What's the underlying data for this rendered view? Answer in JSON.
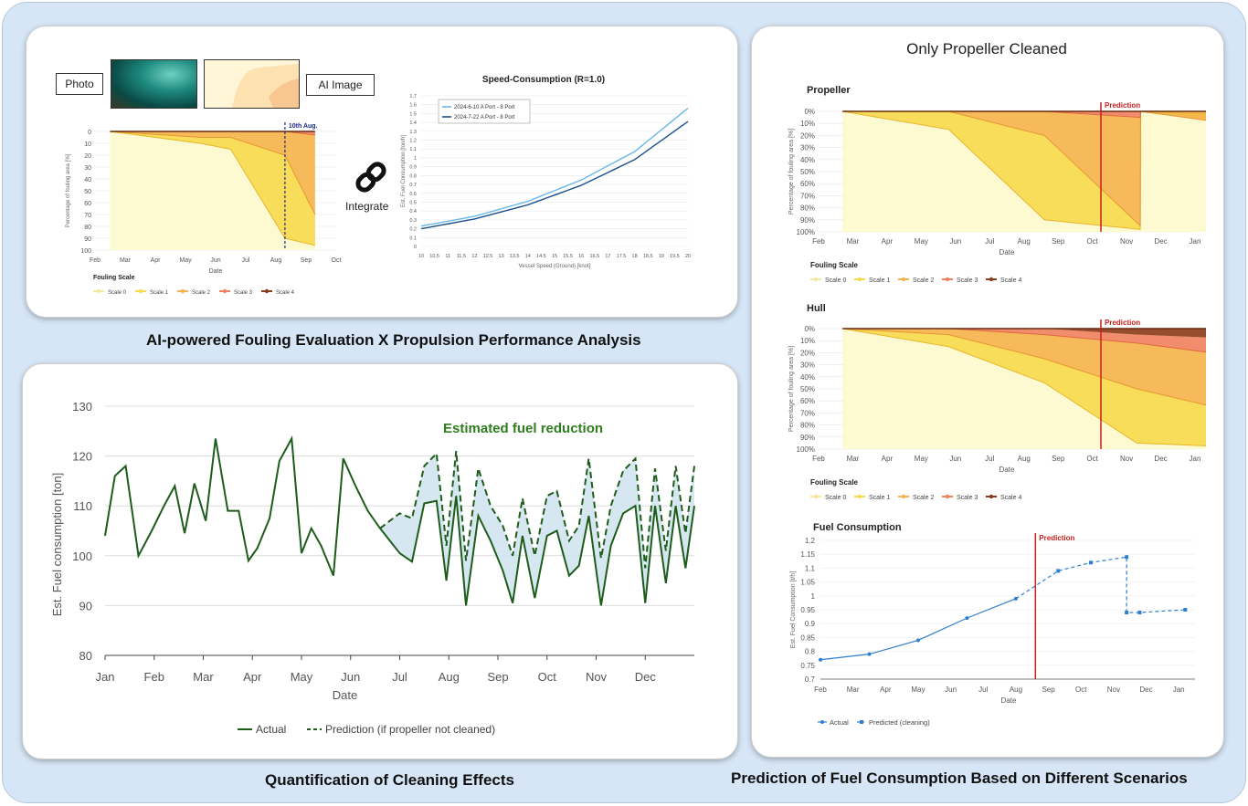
{
  "captions": {
    "top_left": "AI-powered Fouling Evaluation  X  Propulsion Performance Analysis",
    "bottom_left": "Quantification of Cleaning Effects",
    "bottom_right": "Prediction of Fuel Consumption Based on Different Scenarios",
    "right_title": "Only Propeller Cleaned"
  },
  "top_left_panel": {
    "photo_label": "Photo",
    "ai_image_label": "AI Image",
    "integrate_label": "Integrate",
    "link_icon": "link-icon",
    "marker_label": "10th Aug."
  },
  "fouling_scale": {
    "title": "Fouling Scale",
    "labels": [
      "Scale 0",
      "Scale 1",
      "Scale 2",
      "Scale 3",
      "Scale 4"
    ],
    "colors": [
      "#fdf9cc",
      "#f7d94c",
      "#f6b24e",
      "#f08060",
      "#8b3a1c"
    ]
  },
  "chart_data": [
    {
      "id": "small-fouling",
      "type": "area",
      "ylabel": "Percentage of fouling area [%]",
      "xlabel": "Date",
      "x_ticks": [
        "Feb",
        "Mar",
        "Apr",
        "May",
        "Jun",
        "Jul",
        "Aug",
        "Sep",
        "Oct"
      ],
      "y_ticks": [
        "0",
        "10",
        "20",
        "30",
        "40",
        "50",
        "60",
        "70",
        "80",
        "90",
        "100"
      ],
      "ylim": [
        0,
        100
      ],
      "annotation": "10th Aug.",
      "boundaries": {
        "x": [
          0.5,
          3.5,
          4.5,
          6.3,
          7.3
        ],
        "scale0_1": [
          0,
          10,
          15,
          90,
          96
        ],
        "scale1_2": [
          0,
          5,
          5,
          20,
          70
        ],
        "scale2_3": [
          0,
          0,
          0,
          0,
          3
        ],
        "scale3_4": [
          0,
          0,
          0,
          0,
          0
        ]
      }
    },
    {
      "id": "speed-consumption",
      "type": "line",
      "title": "Speed-Consumption (R=1.0)",
      "xlabel": "Vessel Speed (Ground) [knot]",
      "ylabel": "Est. Fuel Consumption [ton/h]",
      "x_ticks": [
        "10",
        "10.5",
        "11",
        "11.5",
        "12",
        "12.5",
        "13",
        "13.5",
        "14",
        "14.5",
        "15",
        "15.5",
        "16",
        "16.5",
        "17",
        "17.5",
        "18",
        "18.5",
        "19",
        "19.5",
        "20"
      ],
      "y_ticks": [
        "0",
        "0.1",
        "0.2",
        "0.3",
        "0.4",
        "0.5",
        "0.6",
        "0.7",
        "0.8",
        "0.9",
        "1",
        "1.1",
        "1.2",
        "1.3",
        "1.4",
        "1.5",
        "1.6",
        "1.7"
      ],
      "xlim": [
        10,
        20
      ],
      "ylim": [
        0,
        1.7
      ],
      "series": [
        {
          "name": "2024-6-10 A Port - 8 Port",
          "color": "#6ab6e6",
          "x": [
            10,
            12,
            14,
            16,
            18,
            20
          ],
          "y": [
            0.23,
            0.34,
            0.51,
            0.75,
            1.07,
            1.56
          ]
        },
        {
          "name": "2024-7-22 A Port - 8 Port",
          "color": "#1b4f8a",
          "x": [
            10,
            12,
            14,
            16,
            18,
            20
          ],
          "y": [
            0.2,
            0.31,
            0.47,
            0.69,
            0.98,
            1.41
          ]
        }
      ]
    },
    {
      "id": "cleaning-effects",
      "type": "line",
      "title": "",
      "annotation": "Estimated fuel reduction",
      "xlabel": "Date",
      "ylabel": "Est. Fuel consumption [ton]",
      "x_ticks": [
        "Jan",
        "Feb",
        "Mar",
        "Apr",
        "May",
        "Jun",
        "Jul",
        "Aug",
        "Sep",
        "Oct",
        "Nov",
        "Dec"
      ],
      "y_ticks": [
        "80",
        "90",
        "100",
        "110",
        "120",
        "130"
      ],
      "ylim": [
        80,
        130
      ],
      "series": [
        {
          "name": "Actual",
          "color": "#1d5c1a",
          "x": [
            0,
            0.2,
            0.42,
            0.68,
            0.95,
            1.2,
            1.42,
            1.62,
            1.82,
            2.05,
            2.25,
            2.5,
            2.72,
            2.92,
            3.1,
            3.35,
            3.55,
            3.8,
            4.0,
            4.2,
            4.4,
            4.65,
            4.85,
            5.1,
            5.35,
            5.6,
            6.0,
            6.25,
            6.5,
            6.75,
            6.95,
            7.15,
            7.35,
            7.6,
            7.85,
            8.1,
            8.3,
            8.5,
            8.75,
            9.0,
            9.2,
            9.45,
            9.65,
            9.85,
            10.1,
            10.3,
            10.55,
            10.8,
            11.0,
            11.2,
            11.42,
            11.62,
            11.82,
            12.0
          ],
          "y": [
            104,
            116,
            118,
            100,
            105,
            110,
            114,
            104.5,
            114.5,
            107,
            123.5,
            109,
            109,
            99,
            101.5,
            107.5,
            119,
            123.5,
            100.5,
            105.5,
            102,
            96,
            119.5,
            114,
            109,
            105.5,
            100.5,
            98.8,
            110.5,
            111,
            95,
            112,
            90,
            108,
            103,
            97,
            90.5,
            104,
            91.5,
            104,
            105,
            96,
            98,
            108,
            90,
            102,
            108.5,
            110,
            90.5,
            110,
            94.5,
            110,
            97.5,
            110
          ]
        },
        {
          "name": "Prediction (if propeller not cleaned)",
          "color": "#1d5c1a",
          "dash": true,
          "x": [
            5.6,
            6.0,
            6.25,
            6.5,
            6.75,
            6.95,
            7.15,
            7.35,
            7.6,
            7.85,
            8.1,
            8.3,
            8.5,
            8.75,
            9.0,
            9.2,
            9.45,
            9.65,
            9.85,
            10.1,
            10.3,
            10.55,
            10.8,
            11.0,
            11.2,
            11.42,
            11.62,
            11.82,
            12.0
          ],
          "y": [
            105.5,
            108.5,
            107.5,
            118,
            120.5,
            102,
            121,
            99,
            117.5,
            110,
            106,
            100,
            111.5,
            100,
            112,
            113,
            103,
            106,
            119.5,
            99.5,
            110,
            117,
            119.5,
            97.5,
            117.5,
            101,
            118,
            104.5,
            118
          ]
        }
      ]
    },
    {
      "id": "propeller-fouling",
      "type": "area",
      "title": "Propeller",
      "annotation": "Prediction",
      "xlabel": "Date",
      "ylabel": "Percentage of fouling area [%]",
      "x_ticks": [
        "Feb",
        "Mar",
        "Apr",
        "May",
        "Jun",
        "Jul",
        "Aug",
        "Sep",
        "Oct",
        "Nov",
        "Dec",
        "Jan"
      ],
      "y_ticks": [
        "0%",
        "10%",
        "20%",
        "30%",
        "40%",
        "50%",
        "60%",
        "70%",
        "80%",
        "90%",
        "100%"
      ],
      "ylim": [
        0,
        100
      ],
      "boundaries": {
        "x": [
          0.7,
          3.8,
          6.6,
          9.4,
          9.41,
          12.0
        ],
        "scale0_1": [
          0,
          15,
          90,
          98,
          0,
          3
        ],
        "scale1_2": [
          0,
          0,
          20,
          95,
          0,
          10
        ],
        "scale2_3": [
          0,
          0,
          0,
          5,
          0,
          0
        ],
        "scale3_4": [
          0,
          0,
          0,
          0,
          0,
          0
        ]
      }
    },
    {
      "id": "hull-fouling",
      "type": "area",
      "title": "Hull",
      "annotation": "Prediction",
      "xlabel": "Date",
      "ylabel": "Percentage of fouling area [%]",
      "x_ticks": [
        "Feb",
        "Mar",
        "Apr",
        "May",
        "Jun",
        "Jul",
        "Aug",
        "Sep",
        "Oct",
        "Nov",
        "Dec",
        "Jan"
      ],
      "y_ticks": [
        "0%",
        "10%",
        "20%",
        "30%",
        "40%",
        "50%",
        "60%",
        "70%",
        "80%",
        "90%",
        "100%"
      ],
      "ylim": [
        0,
        100
      ],
      "boundaries": {
        "x": [
          0.7,
          3.8,
          6.6,
          9.3,
          12.0
        ],
        "scale0_1": [
          0,
          15,
          45,
          95,
          98
        ],
        "scale1_2": [
          0,
          5,
          25,
          50,
          68
        ],
        "scale2_3": [
          0,
          0,
          5,
          12,
          22
        ],
        "scale3_4": [
          0,
          0,
          0,
          5,
          8
        ]
      }
    },
    {
      "id": "fuel-consumption",
      "type": "line",
      "title": "Fuel Consumption",
      "annotation": "Prediction",
      "xlabel": "Date",
      "ylabel": "Est. Fuel Consumption [t/h]",
      "x_ticks": [
        "Feb",
        "Mar",
        "Apr",
        "May",
        "Jun",
        "Jul",
        "Aug",
        "Sep",
        "Oct",
        "Nov",
        "Dec",
        "Jan"
      ],
      "y_ticks": [
        "0.7",
        "0.75",
        "0.8",
        "0.85",
        "0.9",
        "0.95",
        "1",
        "1.05",
        "1.1",
        "1.15",
        "1.2"
      ],
      "ylim": [
        0.7,
        1.2
      ],
      "series": [
        {
          "name": "Actual",
          "color": "#2f7fd0",
          "x": [
            0,
            1.5,
            3.0,
            4.5,
            6.0
          ],
          "y": [
            0.77,
            0.79,
            0.84,
            0.92,
            0.99
          ]
        },
        {
          "name": "Predicted (cleaning)",
          "color": "#2f7fd0",
          "dash": true,
          "x": [
            6.0,
            7.3,
            8.3,
            9.4,
            9.4,
            9.8,
            11.2
          ],
          "y": [
            0.99,
            1.09,
            1.12,
            1.14,
            0.94,
            0.94,
            0.95
          ]
        }
      ]
    }
  ]
}
